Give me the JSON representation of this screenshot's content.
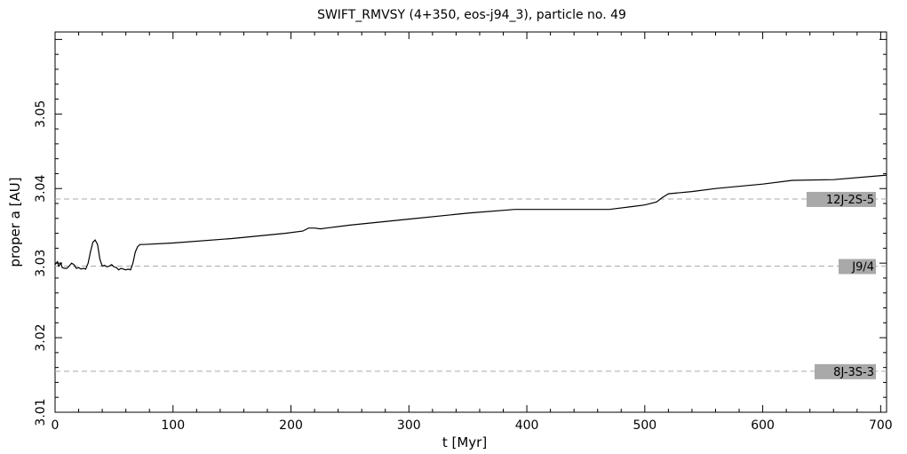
{
  "chart_data": {
    "type": "line",
    "title": "SWIFT_RMVSY (4+350, eos-j94_3), particle no. 49",
    "xlabel": "t [Myr]",
    "ylabel": "proper a [AU]",
    "xlim": [
      0,
      705
    ],
    "ylim": [
      3.01,
      3.061
    ],
    "xticks": [
      0,
      100,
      200,
      300,
      400,
      500,
      600,
      700
    ],
    "yticks": [
      3.01,
      3.02,
      3.03,
      3.04,
      3.05
    ],
    "ytick_labels": [
      "3.01",
      "3.02",
      "3.03",
      "3.04",
      "3.05"
    ],
    "grid": false,
    "resonances": [
      {
        "label": "12J-2S-5",
        "a": 3.0386
      },
      {
        "label": "J9/4",
        "a": 3.0296
      },
      {
        "label": "8J-3S-3",
        "a": 3.0155
      }
    ],
    "series": [
      {
        "x": [
          0,
          2,
          3,
          5,
          6,
          8,
          10,
          12,
          14,
          16,
          18,
          20,
          22,
          24,
          26,
          28,
          30,
          32,
          34,
          36,
          38,
          40,
          42,
          44,
          46,
          48,
          50,
          52,
          54,
          56,
          58,
          60,
          62,
          64,
          66,
          68,
          70,
          72,
          75,
          100,
          150,
          195,
          210,
          215,
          220,
          225,
          230,
          250,
          300,
          350,
          390,
          420,
          460,
          470,
          490,
          500,
          510,
          515,
          520,
          540,
          560,
          600,
          625,
          660,
          705
        ],
        "y": [
          3.0298,
          3.0302,
          3.0296,
          3.03,
          3.0294,
          3.0293,
          3.0293,
          3.0296,
          3.03,
          3.0298,
          3.0293,
          3.0294,
          3.0292,
          3.0293,
          3.0292,
          3.03,
          3.0315,
          3.0328,
          3.0331,
          3.0325,
          3.0305,
          3.0296,
          3.0297,
          3.0295,
          3.0296,
          3.0298,
          3.0295,
          3.0294,
          3.0291,
          3.0293,
          3.0292,
          3.0291,
          3.0292,
          3.0291,
          3.03,
          3.0315,
          3.0322,
          3.0325,
          3.0325,
          3.0327,
          3.0333,
          3.034,
          3.0343,
          3.0347,
          3.0347,
          3.0346,
          3.0347,
          3.0351,
          3.0359,
          3.0367,
          3.0372,
          3.0372,
          3.0372,
          3.0372,
          3.0376,
          3.0378,
          3.0382,
          3.0388,
          3.0393,
          3.0396,
          3.04,
          3.0406,
          3.0411,
          3.0412,
          3.0418
        ]
      }
    ]
  }
}
